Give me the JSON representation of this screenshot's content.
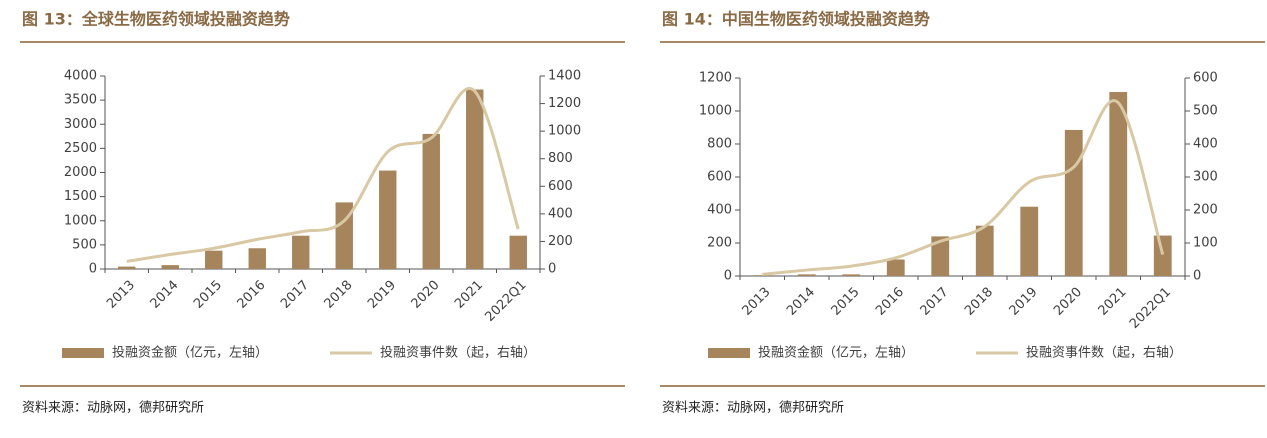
{
  "chart_data": [
    {
      "type": "bar",
      "title": "图 13：全球生物医药领域投融资趋势",
      "source": "资料来源：动脉网，德邦研究所",
      "categories": [
        "2013",
        "2014",
        "2015",
        "2016",
        "2017",
        "2018",
        "2019",
        "2020",
        "2021",
        "2022Q1"
      ],
      "series": [
        {
          "name": "投融资金额（亿元，左轴）",
          "type": "bar",
          "color": "#a6845c",
          "values": [
            50,
            80,
            380,
            430,
            690,
            1380,
            2040,
            2800,
            3720,
            690
          ]
        },
        {
          "name": "投融资事件数（起，右轴）",
          "type": "line",
          "axis": "y2",
          "color": "#d9c8a4",
          "values": [
            55,
            105,
            150,
            215,
            270,
            350,
            850,
            950,
            1290,
            290
          ]
        }
      ],
      "ylim": [
        0,
        4000
      ],
      "yticks": [
        0,
        500,
        1000,
        1500,
        2000,
        2500,
        3000,
        3500,
        4000
      ],
      "y2lim": [
        0,
        1400
      ],
      "y2ticks": [
        0,
        200,
        400,
        600,
        800,
        1000,
        1200,
        1400
      ],
      "grid": false
    },
    {
      "type": "bar",
      "title": "图 14：中国生物医药领域投融资趋势",
      "source": "资料来源：动脉网，德邦研究所",
      "categories": [
        "2013",
        "2014",
        "2015",
        "2016",
        "2017",
        "2018",
        "2019",
        "2020",
        "2021",
        "2022Q1"
      ],
      "series": [
        {
          "name": "投融资金额（亿元，左轴）",
          "type": "bar",
          "color": "#a6845c",
          "values": [
            5,
            10,
            10,
            100,
            240,
            305,
            420,
            885,
            1115,
            245
          ]
        },
        {
          "name": "投融资事件数（起，右轴）",
          "type": "line",
          "axis": "y2",
          "color": "#d9c8a4",
          "values": [
            5,
            18,
            30,
            55,
            105,
            150,
            285,
            330,
            525,
            65
          ]
        }
      ],
      "ylim": [
        0,
        1200
      ],
      "yticks": [
        0,
        200,
        400,
        600,
        800,
        1000,
        1200
      ],
      "y2lim": [
        0,
        600
      ],
      "y2ticks": [
        0,
        100,
        200,
        300,
        400,
        500,
        600
      ],
      "grid": false
    }
  ]
}
